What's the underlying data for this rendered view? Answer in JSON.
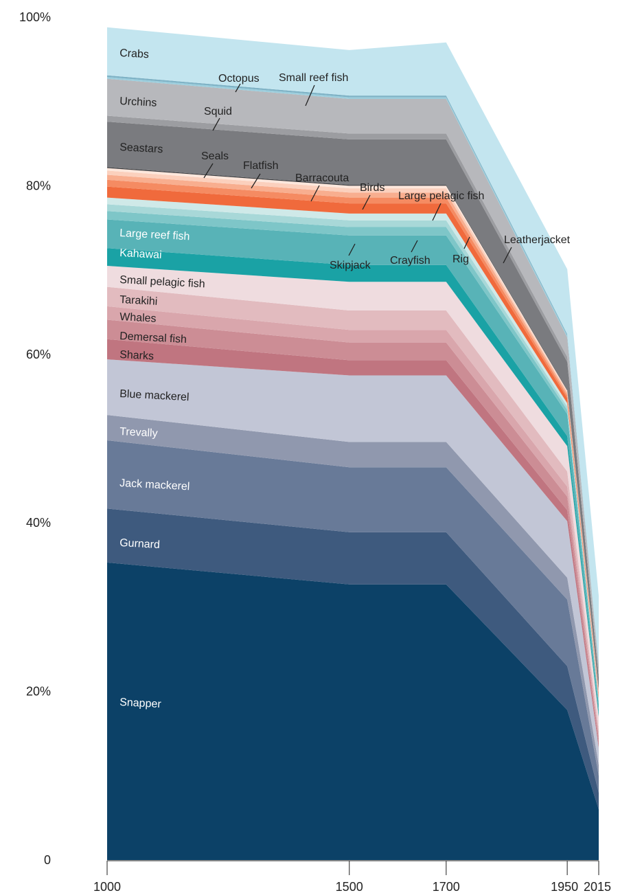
{
  "chart_data": {
    "type": "area",
    "stacked": true,
    "x": [
      1000,
      1500,
      1700,
      1950,
      2015
    ],
    "x_tick_labels": [
      "1000",
      "1500",
      "1700",
      "1950",
      "2015"
    ],
    "y_tick_labels": [
      "0",
      "20%",
      "40%",
      "60%",
      "80%",
      "100%"
    ],
    "ylim": [
      0,
      100
    ],
    "grid": false,
    "legend": "inline labels",
    "series": [
      {
        "name": "Snapper",
        "color": "#0c4167",
        "values": [
          35.3,
          32.7,
          32.7,
          17.8,
          6.0
        ]
      },
      {
        "name": "Gurnard",
        "color": "#3e5a7e",
        "values": [
          6.4,
          6.2,
          6.2,
          5.2,
          2.0
        ]
      },
      {
        "name": "Jack mackerel",
        "color": "#687a98",
        "values": [
          8.1,
          7.7,
          7.7,
          7.9,
          2.0
        ]
      },
      {
        "name": "Trevally",
        "color": "#9098ae",
        "values": [
          3.0,
          3.0,
          3.0,
          2.6,
          1.3
        ]
      },
      {
        "name": "Blue mackerel",
        "color": "#c2c6d6",
        "values": [
          6.6,
          7.9,
          7.9,
          6.7,
          2.0
        ]
      },
      {
        "name": "Sharks",
        "color": "#c07580",
        "values": [
          2.4,
          1.8,
          1.8,
          1.3,
          0.5
        ]
      },
      {
        "name": "Demersal fish",
        "color": "#cc8d95",
        "values": [
          2.3,
          2.1,
          2.1,
          1.6,
          0.6
        ]
      },
      {
        "name": "Whales",
        "color": "#d9a6ac",
        "values": [
          1.6,
          1.5,
          1.5,
          1.2,
          0.5
        ]
      },
      {
        "name": "Tarakihi",
        "color": "#e2bbbf",
        "values": [
          2.3,
          2.3,
          2.3,
          1.8,
          0.6
        ]
      },
      {
        "name": "Small pelagic fish",
        "color": "#efdcdf",
        "values": [
          2.5,
          3.4,
          3.4,
          3.0,
          1.5
        ]
      },
      {
        "name": "Kahawai",
        "color": "#1aa2a5",
        "values": [
          2.1,
          2.0,
          2.0,
          1.2,
          0.5
        ]
      },
      {
        "name": "Large reef fish",
        "color": "#58b3b7",
        "values": [
          3.4,
          3.5,
          3.5,
          2.6,
          1.0
        ]
      },
      {
        "name": "Skipjack",
        "color": "#7ec6c8",
        "values": [
          1.0,
          1.0,
          1.0,
          0.5,
          0.3
        ]
      },
      {
        "name": "Crayfish",
        "color": "#a8d8d8",
        "values": [
          0.8,
          0.8,
          0.8,
          0.4,
          0.2
        ]
      },
      {
        "name": "Rig",
        "color": "#cfe9e8",
        "values": [
          0.8,
          0.8,
          0.8,
          0.4,
          0.2
        ]
      },
      {
        "name": "Large pelagic fish",
        "color": "#f06a3c",
        "values": [
          1.3,
          1.2,
          1.2,
          0.6,
          0.3
        ]
      },
      {
        "name": "Birds",
        "color": "#f58b62",
        "values": [
          0.8,
          0.7,
          0.7,
          0.3,
          0.2
        ]
      },
      {
        "name": "Barracouta",
        "color": "#f8ae8f",
        "values": [
          0.6,
          0.6,
          0.6,
          0.3,
          0.15
        ]
      },
      {
        "name": "Flatfish",
        "color": "#fbd0bd",
        "values": [
          0.5,
          0.5,
          0.5,
          0.2,
          0.15
        ]
      },
      {
        "name": "Leatherjacket",
        "color": "#fde7dc",
        "values": [
          0.3,
          0.3,
          0.3,
          0.1,
          0.1
        ]
      },
      {
        "name": "Seals",
        "color": "#3a3b3e",
        "values": [
          0.1,
          0.1,
          0.1,
          0.1,
          0.05
        ]
      },
      {
        "name": "Seastars",
        "color": "#7a7b7f",
        "values": [
          5.4,
          5.4,
          5.4,
          3.3,
          1.5
        ]
      },
      {
        "name": "Squid",
        "color": "#9c9da1",
        "values": [
          0.7,
          0.7,
          0.7,
          0.6,
          0.3
        ]
      },
      {
        "name": "Urchins",
        "color": "#b7b8bc",
        "values": [
          4.4,
          4.1,
          4.1,
          2.3,
          1.2
        ]
      },
      {
        "name": "Small reef fish",
        "color": "#9ccedd",
        "values": [
          0.2,
          0.2,
          0.2,
          0.2,
          0.1
        ]
      },
      {
        "name": "Octopus",
        "color": "#7fb3c6",
        "values": [
          0.2,
          0.2,
          0.2,
          0.2,
          0.1
        ]
      },
      {
        "name": "Crabs",
        "color": "#c3e5ef",
        "values": [
          5.7,
          5.4,
          6.3,
          7.7,
          8.0
        ]
      }
    ]
  }
}
